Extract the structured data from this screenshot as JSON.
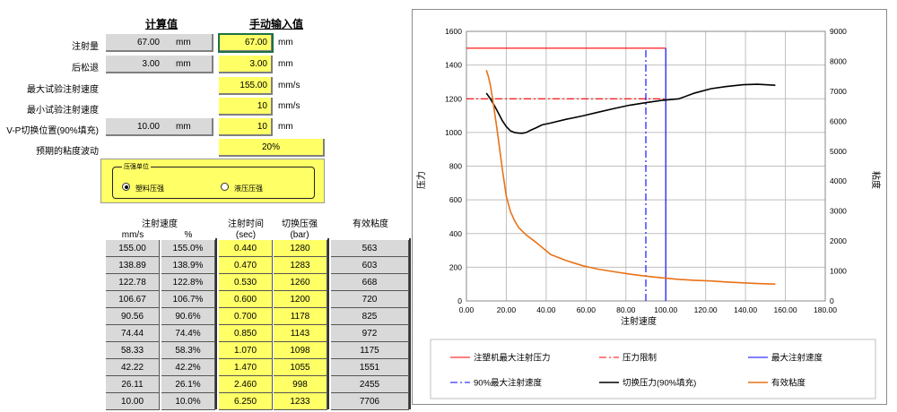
{
  "form": {
    "header_calc": "计算值",
    "header_manual": "手动输入值",
    "rows": [
      {
        "label": "注射量",
        "calc_value": "67.00",
        "calc_unit": "mm",
        "input": "67.00",
        "unit": "mm"
      },
      {
        "label": "后松退",
        "calc_value": "3.00",
        "calc_unit": "mm",
        "input": "3.00",
        "unit": "mm"
      },
      {
        "label": "最大试验注射速度",
        "input": "155.00",
        "unit": "mm/s"
      },
      {
        "label": "最小试验注射速度",
        "input": "10",
        "unit": "mm/s"
      },
      {
        "label": "V-P切换位置(90%填充)",
        "calc_value": "10.00",
        "calc_unit": "mm",
        "input": "10",
        "unit": "mm"
      },
      {
        "label": "预期的粘度波动",
        "input": "20%"
      }
    ],
    "pressure_unit": {
      "legend": "压强单位",
      "options": [
        {
          "label": "塑料压强",
          "selected": true
        },
        {
          "label": "液压压强",
          "selected": false
        }
      ]
    }
  },
  "table": {
    "head_speed": "注射速度",
    "head_speed_mm": "mm/s",
    "head_speed_pct": "%",
    "head_time": "注射时间",
    "head_time_unit": "(sec)",
    "head_press": "切换压强",
    "head_press_unit": "(bar)",
    "head_visc": "有效粘度",
    "rows": [
      [
        "155.00",
        "155.0%",
        "0.440",
        "1280",
        "563"
      ],
      [
        "138.89",
        "138.9%",
        "0.470",
        "1283",
        "603"
      ],
      [
        "122.78",
        "122.8%",
        "0.530",
        "1260",
        "668"
      ],
      [
        "106.67",
        "106.7%",
        "0.600",
        "1200",
        "720"
      ],
      [
        "90.56",
        "90.6%",
        "0.700",
        "1178",
        "825"
      ],
      [
        "74.44",
        "74.4%",
        "0.850",
        "1143",
        "972"
      ],
      [
        "58.33",
        "58.3%",
        "1.070",
        "1098",
        "1175"
      ],
      [
        "42.22",
        "42.2%",
        "1.470",
        "1055",
        "1551"
      ],
      [
        "26.11",
        "26.1%",
        "2.460",
        "998",
        "2455"
      ],
      [
        "10.00",
        "10.0%",
        "6.250",
        "1233",
        "7706"
      ]
    ]
  },
  "chart_data": {
    "type": "line",
    "xlabel": "注射速度",
    "ylabel_left": "压力",
    "ylabel_right": "粘度",
    "xlim": [
      0,
      180
    ],
    "ylim_left": [
      0,
      1600
    ],
    "ylim_right": [
      0,
      9000
    ],
    "x_ticks": [
      "0.00",
      "20.00",
      "40.00",
      "60.00",
      "80.00",
      "100.00",
      "120.00",
      "140.00",
      "160.00",
      "180.00"
    ],
    "y_left_ticks": [
      "0",
      "200",
      "400",
      "600",
      "800",
      "1000",
      "1200",
      "1400",
      "1600"
    ],
    "y_right_ticks": [
      "0",
      "1000",
      "2000",
      "3000",
      "4000",
      "5000",
      "6000",
      "7000",
      "8000",
      "9000"
    ],
    "grid": true,
    "legend_position": "bottom",
    "series": [
      {
        "name": "注塑机最大注射压力",
        "color": "#ff0000",
        "style": "solid",
        "axis": "left",
        "x": [
          0,
          100
        ],
        "y": [
          1500,
          1500
        ]
      },
      {
        "name": "压力限制",
        "color": "#ff0000",
        "style": "dashdot",
        "axis": "left",
        "x": [
          0,
          100
        ],
        "y": [
          1200,
          1200
        ]
      },
      {
        "name": "最大注射速度",
        "color": "#0000ff",
        "style": "solid",
        "axis": "left",
        "x": [
          100,
          100
        ],
        "y": [
          0,
          1500
        ]
      },
      {
        "name": "90%最大注射速度",
        "color": "#0000ff",
        "style": "dashdot",
        "axis": "left",
        "x": [
          90,
          90
        ],
        "y": [
          0,
          1500
        ]
      },
      {
        "name": "切换压力(90%填充)",
        "color": "#000000",
        "style": "solid",
        "axis": "left",
        "x": [
          10,
          12,
          14,
          16,
          18,
          20,
          22,
          24,
          26,
          28,
          30,
          32,
          35,
          38,
          42,
          50,
          58.33,
          66,
          74.44,
          82,
          90.56,
          98,
          106.67,
          114,
          122.78,
          130,
          138.89,
          146,
          155
        ],
        "y": [
          1233,
          1200,
          1160,
          1115,
          1070,
          1035,
          1010,
          1000,
          996,
          995,
          1000,
          1012,
          1028,
          1045,
          1055,
          1078,
          1098,
          1120,
          1143,
          1162,
          1178,
          1190,
          1200,
          1232,
          1260,
          1272,
          1283,
          1286,
          1280
        ]
      },
      {
        "name": "有效粘度",
        "color": "#e97217",
        "style": "solid",
        "axis": "right",
        "x": [
          10,
          11,
          12,
          13,
          14,
          15,
          16,
          17,
          18,
          19,
          20,
          22,
          24,
          26.11,
          30,
          35,
          42.22,
          50,
          58.33,
          66,
          74.44,
          82,
          90.56,
          98,
          106.67,
          114,
          122.78,
          130,
          138.89,
          146,
          155
        ],
        "y": [
          7706,
          7500,
          7200,
          6800,
          6350,
          5900,
          5400,
          4900,
          4400,
          3950,
          3500,
          3000,
          2700,
          2455,
          2200,
          1950,
          1551,
          1350,
          1175,
          1060,
          972,
          895,
          825,
          770,
          720,
          690,
          668,
          635,
          603,
          580,
          563
        ]
      }
    ]
  }
}
